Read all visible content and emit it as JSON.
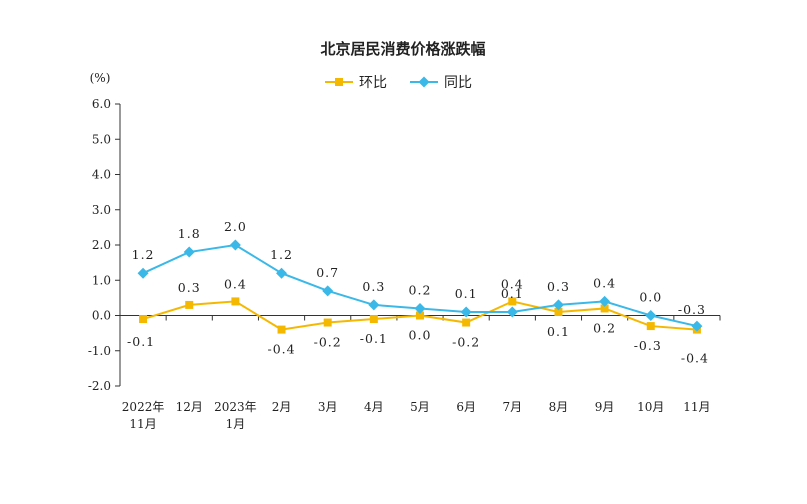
{
  "chart_data": {
    "type": "line",
    "title": "北京居民消费价格涨跌幅",
    "y_unit": "(%)",
    "ylim": [
      -2.0,
      6.0
    ],
    "y_ticks": [
      "6.0",
      "5.0",
      "4.0",
      "3.0",
      "2.0",
      "1.0",
      "0.0",
      "-1.0",
      "-2.0"
    ],
    "categories": [
      [
        "2022年",
        "11月"
      ],
      [
        "12月"
      ],
      [
        "2023年",
        "1月"
      ],
      [
        "2月"
      ],
      [
        "3月"
      ],
      [
        "4月"
      ],
      [
        "5月"
      ],
      [
        "6月"
      ],
      [
        "7月"
      ],
      [
        "8月"
      ],
      [
        "9月"
      ],
      [
        "10月"
      ],
      [
        "11月"
      ]
    ],
    "legend_position": "top-center",
    "grid": false,
    "series": [
      {
        "name": "环比",
        "color": "#F5B800",
        "marker": "square",
        "values": [
          -0.1,
          0.3,
          0.4,
          -0.4,
          -0.2,
          -0.1,
          0.0,
          -0.2,
          0.4,
          0.1,
          0.2,
          -0.3,
          -0.4
        ],
        "labels": [
          "-0.1",
          "0.3",
          "0.4",
          "-0.4",
          "-0.2",
          "-0.1",
          "0.0",
          "-0.2",
          "0.4",
          "0.1",
          "0.2",
          "-0.3",
          "-0.4"
        ]
      },
      {
        "name": "同比",
        "color": "#3AB8E8",
        "marker": "diamond",
        "values": [
          1.2,
          1.8,
          2.0,
          1.2,
          0.7,
          0.3,
          0.2,
          0.1,
          0.1,
          0.3,
          0.4,
          0.0,
          -0.3
        ],
        "labels": [
          "1.2",
          "1.8",
          "2.0",
          "1.2",
          "0.7",
          "0.3",
          "0.2",
          "0.1",
          "0.1",
          "0.3",
          "0.4",
          "0.0",
          "-0.3"
        ]
      }
    ]
  }
}
